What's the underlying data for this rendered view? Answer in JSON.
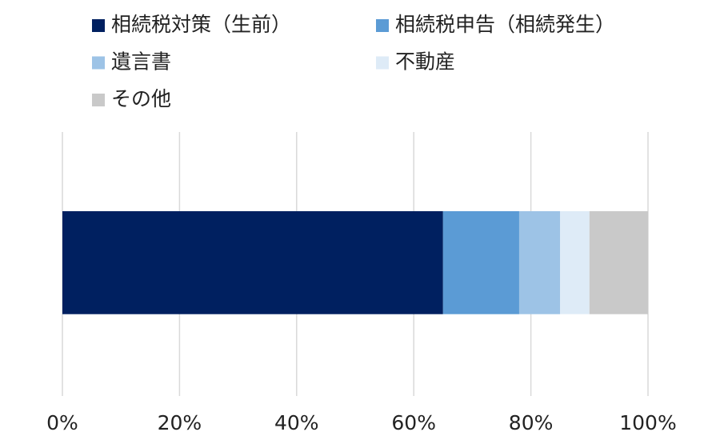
{
  "chart_data": {
    "type": "stacked_barh",
    "series": [
      {
        "name": "相続税対策（生前）",
        "color": "#002060",
        "values": [
          65
        ]
      },
      {
        "name": "相続税申告（相続発生）",
        "color": "#5b9bd5",
        "values": [
          13
        ]
      },
      {
        "name": "遺言書",
        "color": "#9dc3e6",
        "values": [
          7
        ]
      },
      {
        "name": "不動産",
        "color": "#deebf7",
        "values": [
          5
        ]
      },
      {
        "name": "その他",
        "color": "#c9c9c9",
        "values": [
          10
        ]
      }
    ],
    "xlim": [
      0,
      100
    ],
    "xticks": [
      {
        "value": 0,
        "label": "0%"
      },
      {
        "value": 20,
        "label": "20%"
      },
      {
        "value": 40,
        "label": "40%"
      },
      {
        "value": 60,
        "label": "60%"
      },
      {
        "value": 80,
        "label": "80%"
      },
      {
        "value": 100,
        "label": "100%"
      }
    ],
    "grid": true
  }
}
